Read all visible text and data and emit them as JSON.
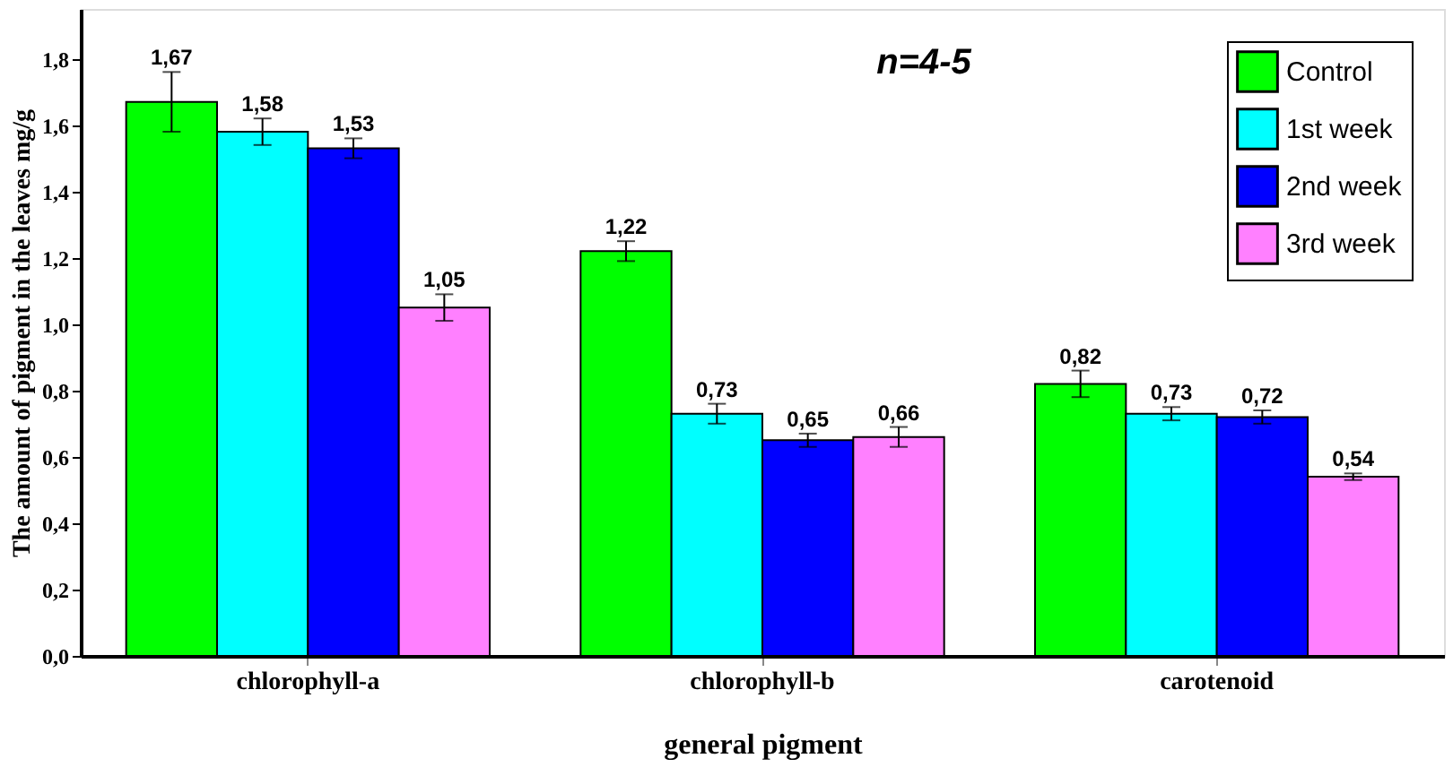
{
  "chart_data": {
    "type": "bar",
    "xlabel": "general pigment",
    "ylabel": "The amount of pigment in the leaves mg/g",
    "categories": [
      "chlorophyll-a",
      "chlorophyll-b",
      "carotenoid"
    ],
    "series": [
      {
        "name": "Control",
        "color": "#00ff00",
        "values": [
          1.67,
          1.22,
          0.82
        ],
        "errors": [
          0.09,
          0.03,
          0.04
        ],
        "value_labels": [
          "1,67",
          "1,22",
          "0,82"
        ]
      },
      {
        "name": "1st week",
        "color": "#00ffff",
        "values": [
          1.58,
          0.73,
          0.73
        ],
        "errors": [
          0.04,
          0.03,
          0.02
        ],
        "value_labels": [
          "1,58",
          "0,73",
          "0,73"
        ]
      },
      {
        "name": "2nd week",
        "color": "#0000ff",
        "values": [
          1.53,
          0.65,
          0.72
        ],
        "errors": [
          0.03,
          0.02,
          0.02
        ],
        "value_labels": [
          "1,53",
          "0,65",
          "0,72"
        ]
      },
      {
        "name": "3rd week",
        "color": "#ff80ff",
        "values": [
          1.05,
          0.66,
          0.54
        ],
        "errors": [
          0.04,
          0.03,
          0.01
        ],
        "value_labels": [
          "1,05",
          "0,66",
          "0,54"
        ]
      }
    ],
    "ylim": [
      0,
      1.95
    ],
    "yticks": [
      {
        "value": 0,
        "label": "0,0"
      },
      {
        "value": 0.2,
        "label": "0,2"
      },
      {
        "value": 0.4,
        "label": "0,4"
      },
      {
        "value": 0.6,
        "label": "0,6"
      },
      {
        "value": 0.8,
        "label": "0,8"
      },
      {
        "value": 1.0,
        "label": "1,0"
      },
      {
        "value": 1.2,
        "label": "1,2"
      },
      {
        "value": 1.4,
        "label": "1,4"
      },
      {
        "value": 1.6,
        "label": "1,6"
      },
      {
        "value": 1.8,
        "label": "1,8"
      }
    ],
    "annotations": [
      "n=4-5"
    ],
    "legend": "top right",
    "grid": false
  }
}
